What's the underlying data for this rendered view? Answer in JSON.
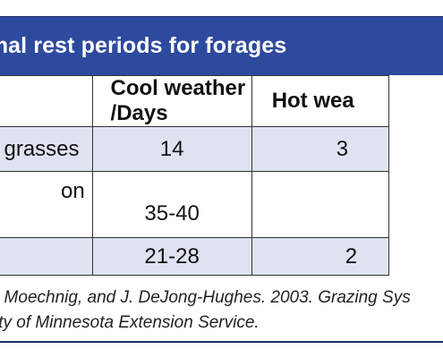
{
  "table": {
    "title": "otimal rest periods for forages",
    "headers": [
      "",
      "Cool weather /Days",
      "Hot wea"
    ],
    "rows": [
      {
        "label": "n grasses",
        "cool": "14",
        "hot": "3"
      },
      {
        "label": "on",
        "cool": "35-40",
        "hot": ""
      },
      {
        "label": "",
        "cool": "21-28",
        "hot": "2"
      }
    ]
  },
  "source": {
    "line1": ". Moechnig, and J. DeJong-Hughes. 2003. Grazing Sys",
    "line2": "ity of Minnesota Extension Service."
  },
  "colors": {
    "title_bar": "#2e4a9e",
    "shaded_row": "#dfe3f1",
    "rule": "#1e2f6e"
  }
}
